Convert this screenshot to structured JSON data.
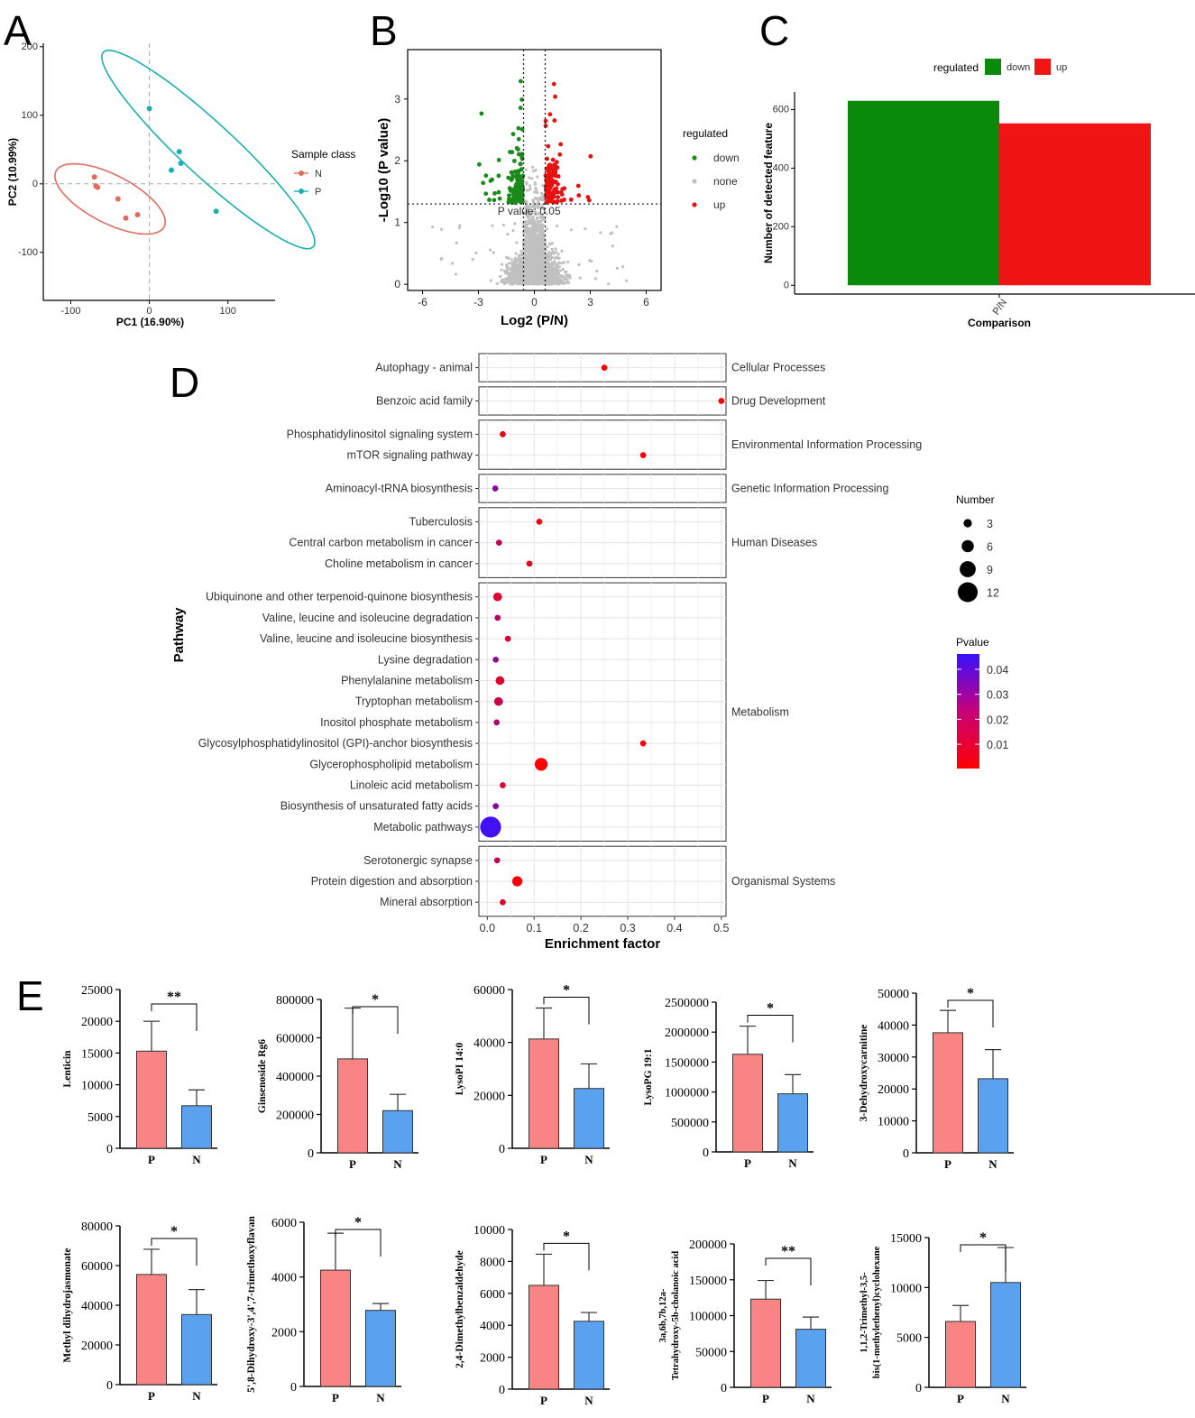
{
  "panel_letters": {
    "a": "A",
    "b": "B",
    "c": "C",
    "d": "D",
    "e": "E"
  },
  "colors": {
    "n_pca": "#e06c5e",
    "p_pca": "#1ab0b0",
    "down": "#1a8a1a",
    "up": "#e81010",
    "none": "#c0c0c0",
    "bar_c_down": "#0a8a0a",
    "bar_c_up": "#f01414",
    "bar_p": "#f88484",
    "bar_n": "#5aa2f0",
    "pval_low": "#ff0000",
    "pval_high": "#3a10ff"
  },
  "chart_data": [
    {
      "id": "A",
      "type": "scatter",
      "title": "",
      "xlabel": "PC1 (16.90%)",
      "ylabel": "PC2 (10.99%)",
      "xlim": [
        -135,
        160
      ],
      "ylim": [
        -170,
        205
      ],
      "xticks": [
        -100,
        0,
        100
      ],
      "yticks": [
        -100,
        0,
        100,
        200
      ],
      "legend_title": "Sample class",
      "series": [
        {
          "name": "N",
          "points": [
            [
              -70,
              10
            ],
            [
              -68,
              -3
            ],
            [
              -66,
              -5
            ],
            [
              -40,
              -22
            ],
            [
              -30,
              -50
            ],
            [
              -15,
              -45
            ]
          ],
          "ellipse": {
            "cx": -50,
            "cy": -22,
            "rx": 80,
            "ry": 34,
            "angle": -32
          }
        },
        {
          "name": "P",
          "points": [
            [
              0,
              110
            ],
            [
              28,
              20
            ],
            [
              38,
              47
            ],
            [
              40,
              30
            ],
            [
              85,
              -40
            ]
          ],
          "ellipse": {
            "cx": 75,
            "cy": 50,
            "rx": 195,
            "ry": 36,
            "angle": -47
          }
        }
      ]
    },
    {
      "id": "B",
      "type": "scatter",
      "title": "",
      "xlabel": "Log2 (P/N)",
      "ylabel": "-Log10 (P value)",
      "xlim": [
        -6.8,
        6.8
      ],
      "ylim": [
        -0.1,
        3.8
      ],
      "xticks": [
        -6,
        -3,
        0,
        3,
        6
      ],
      "yticks": [
        0,
        1,
        2,
        3
      ],
      "threshold_label": "P value: 0.05",
      "threshold_y": 1.3,
      "fc_lines": [
        -0.58,
        0.58
      ],
      "legend_title": "regulated",
      "legend_items": [
        "down",
        "none",
        "up"
      ]
    },
    {
      "id": "C",
      "type": "bar",
      "title": "",
      "xlabel": "Comparison",
      "ylabel": "Number of detected feature",
      "categories": [
        "P/N"
      ],
      "series": [
        {
          "name": "down",
          "values": [
            630
          ]
        },
        {
          "name": "up",
          "values": [
            553
          ]
        }
      ],
      "ylim": [
        -30,
        660
      ],
      "yticks": [
        0,
        200,
        400,
        600
      ],
      "legend_title": "regulated"
    },
    {
      "id": "D",
      "type": "scatter",
      "title": "",
      "xlabel": "Enrichment factor",
      "ylabel": "Pathway",
      "xlim": [
        -0.018,
        0.51
      ],
      "xticks": [
        0.0,
        0.1,
        0.2,
        0.3,
        0.4,
        0.5
      ],
      "xtick_labels": [
        "0.0",
        "0.1",
        "0.2",
        "0.3",
        "0.4",
        "0.5"
      ],
      "size_legend_title": "Number",
      "size_legend": [
        3,
        6,
        9,
        12
      ],
      "color_legend_title": "Pvalue",
      "color_legend": [
        "0.04",
        "0.03",
        "0.02",
        "0.01"
      ],
      "groups": [
        {
          "name": "Cellular Processes",
          "items": [
            {
              "label": "Autophagy - animal",
              "x": 0.25,
              "n": 1,
              "p": 0.005
            }
          ]
        },
        {
          "name": "Drug Development",
          "items": [
            {
              "label": "Benzoic acid family",
              "x": 0.5,
              "n": 1,
              "p": 0.004
            }
          ]
        },
        {
          "name": "Environmental Information Processing",
          "items": [
            {
              "label": "Phosphatidylinositol signaling system",
              "x": 0.033,
              "n": 1,
              "p": 0.008
            },
            {
              "label": "mTOR signaling pathway",
              "x": 0.333,
              "n": 1,
              "p": 0.005
            }
          ]
        },
        {
          "name": "Genetic Information Processing",
          "items": [
            {
              "label": "Aminoacyl-tRNA biosynthesis",
              "x": 0.017,
              "n": 1,
              "p": 0.03
            }
          ]
        },
        {
          "name": "Human Diseases",
          "items": [
            {
              "label": "Tuberculosis",
              "x": 0.111,
              "n": 1,
              "p": 0.006
            },
            {
              "label": "Central carbon metabolism in cancer",
              "x": 0.025,
              "n": 1,
              "p": 0.018
            },
            {
              "label": "Choline metabolism in cancer",
              "x": 0.09,
              "n": 1,
              "p": 0.01
            }
          ]
        },
        {
          "name": "Metabolism",
          "items": [
            {
              "label": "Ubiquinone and other terpenoid-quinone biosynthesis",
              "x": 0.022,
              "n": 3,
              "p": 0.012
            },
            {
              "label": "Valine, leucine and isoleucine degradation",
              "x": 0.022,
              "n": 1,
              "p": 0.02
            },
            {
              "label": "Valine, leucine and isoleucine biosynthesis",
              "x": 0.044,
              "n": 1,
              "p": 0.012
            },
            {
              "label": "Lysine degradation",
              "x": 0.018,
              "n": 1,
              "p": 0.028
            },
            {
              "label": "Phenylalanine metabolism",
              "x": 0.027,
              "n": 3,
              "p": 0.012
            },
            {
              "label": "Tryptophan metabolism",
              "x": 0.024,
              "n": 3,
              "p": 0.016
            },
            {
              "label": "Inositol phosphate metabolism",
              "x": 0.02,
              "n": 1,
              "p": 0.022
            },
            {
              "label": "Glycosylphosphatidylinositol (GPI)-anchor biosynthesis",
              "x": 0.333,
              "n": 1,
              "p": 0.006
            },
            {
              "label": "Glycerophospholipid metabolism",
              "x": 0.115,
              "n": 6,
              "p": 0.004
            },
            {
              "label": "Linoleic acid metabolism",
              "x": 0.033,
              "n": 1,
              "p": 0.012
            },
            {
              "label": "Biosynthesis of unsaturated fatty acids",
              "x": 0.018,
              "n": 1,
              "p": 0.03
            },
            {
              "label": "Metabolic pathways",
              "x": 0.007,
              "n": 12,
              "p": 0.045
            }
          ]
        },
        {
          "name": "Organismal Systems",
          "items": [
            {
              "label": "Serotonergic synapse",
              "x": 0.021,
              "n": 1,
              "p": 0.018
            },
            {
              "label": "Protein digestion and absorption",
              "x": 0.064,
              "n": 4,
              "p": 0.005
            },
            {
              "label": "Mineral absorption",
              "x": 0.033,
              "n": 1,
              "p": 0.01
            }
          ]
        }
      ]
    },
    {
      "id": "E",
      "type": "bar",
      "title": "",
      "categories": [
        "P",
        "N"
      ],
      "subplots": [
        {
          "ylabel": [
            "Lenticin"
          ],
          "values": [
            15300,
            6700
          ],
          "errors": [
            4700,
            2500
          ],
          "ylim": [
            0,
            25000
          ],
          "yticks": [
            0,
            5000,
            10000,
            15000,
            20000,
            25000
          ],
          "sig": "**"
        },
        {
          "ylabel": [
            "Ginsenoside Rg6"
          ],
          "values": [
            490000,
            220000
          ],
          "errors": [
            265000,
            85000
          ],
          "ylim": [
            0,
            800000
          ],
          "yticks": [
            0,
            200000,
            400000,
            600000,
            800000
          ],
          "sig": "*"
        },
        {
          "ylabel": [
            "LysoPI 14:0"
          ],
          "values": [
            41300,
            22600
          ],
          "errors": [
            11700,
            9300
          ],
          "ylim": [
            0,
            60000
          ],
          "yticks": [
            0,
            20000,
            40000,
            60000
          ],
          "sig": "*"
        },
        {
          "ylabel": [
            "LysoPG 19:1"
          ],
          "values": [
            1630000,
            970000
          ],
          "errors": [
            470000,
            320000
          ],
          "ylim": [
            0,
            2500000
          ],
          "yticks": [
            0,
            500000,
            1000000,
            1500000,
            2000000,
            2500000
          ],
          "sig": "*"
        },
        {
          "ylabel": [
            "3-Dehydroxycarnitine"
          ],
          "values": [
            37600,
            23200
          ],
          "errors": [
            7000,
            9100
          ],
          "ylim": [
            0,
            50000
          ],
          "yticks": [
            0,
            10000,
            20000,
            30000,
            40000,
            50000
          ],
          "sig": "*"
        },
        {
          "ylabel": [
            "Methyl dihydrojasmonate"
          ],
          "values": [
            55500,
            35300
          ],
          "errors": [
            12700,
            12600
          ],
          "ylim": [
            0,
            80000
          ],
          "yticks": [
            0,
            20000,
            40000,
            60000,
            80000
          ],
          "sig": "*"
        },
        {
          "ylabel": [
            "5',8-Dihydroxy-3',4',7-trimethoxyflavan"
          ],
          "values": [
            4250,
            2780
          ],
          "errors": [
            1350,
            250
          ],
          "ylim": [
            0,
            6000
          ],
          "yticks": [
            0,
            2000,
            4000,
            6000
          ],
          "sig": "*"
        },
        {
          "ylabel": [
            "2,4-Dimethylbenzaldehyde"
          ],
          "values": [
            6500,
            4250
          ],
          "errors": [
            1950,
            550
          ],
          "ylim": [
            0,
            10000
          ],
          "yticks": [
            0,
            2000,
            4000,
            6000,
            8000,
            10000
          ],
          "sig": "*"
        },
        {
          "ylabel": [
            "3a,6b,7b,12a-",
            "Tetrahydroxy-5b-cholanoic acid"
          ],
          "values": [
            123000,
            81000
          ],
          "errors": [
            26000,
            17000
          ],
          "ylim": [
            0,
            200000
          ],
          "yticks": [
            0,
            50000,
            100000,
            150000,
            200000
          ],
          "sig": "**"
        },
        {
          "ylabel": [
            "1,1,2-Trimethyl-3,5-",
            "bis(1-methylethenyl)cyclohexane"
          ],
          "values": [
            6600,
            10500
          ],
          "errors": [
            1600,
            3500
          ],
          "ylim": [
            0,
            15000
          ],
          "yticks": [
            0,
            5000,
            10000,
            15000
          ],
          "sig": "*"
        }
      ]
    }
  ]
}
